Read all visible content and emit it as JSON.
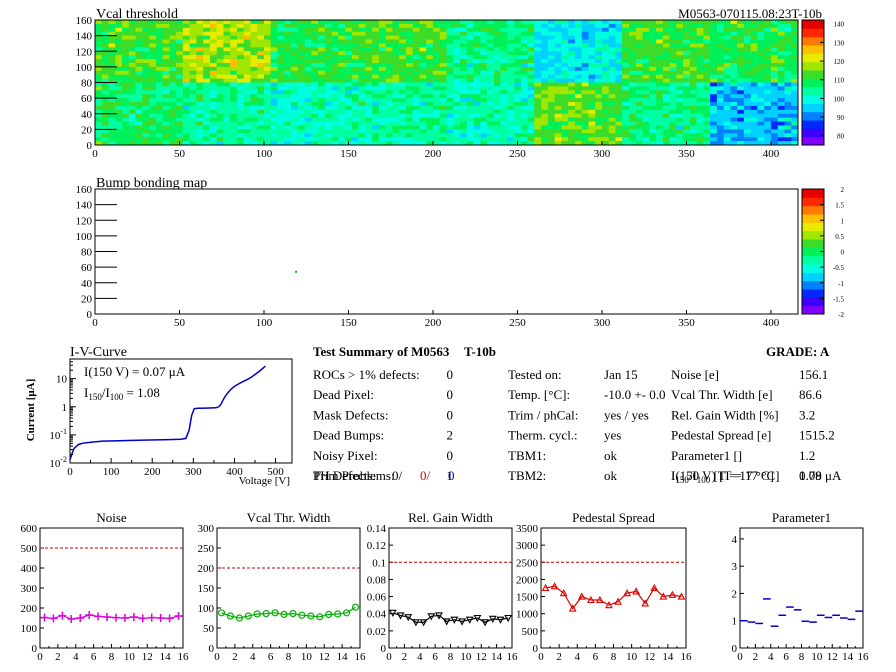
{
  "header": {
    "module_id": "M0563-070115.08:23T-10b"
  },
  "chart_data": [
    {
      "id": "vcal-threshold-map",
      "type": "heatmap",
      "title": "Vcal threshold",
      "x_ticks": [
        0,
        50,
        100,
        150,
        200,
        250,
        300,
        350,
        400
      ],
      "y_ticks": [
        0,
        20,
        40,
        60,
        80,
        100,
        120,
        140,
        160
      ],
      "xlim": [
        0,
        416
      ],
      "ylim": [
        0,
        160
      ],
      "colorbar_ticks": [
        80,
        90,
        100,
        110,
        120,
        130,
        140
      ],
      "colorbar_range": [
        75,
        142
      ],
      "roc_layout": {
        "columns": 8,
        "rows": 2,
        "cols_per_roc": 52,
        "rows_per_roc": 80
      },
      "roc_mean_values": {
        "top": [
          112,
          118,
          110,
          112,
          106,
          98,
          112,
          110
        ],
        "bottom": [
          108,
          104,
          102,
          104,
          103,
          114,
          106,
          94
        ]
      }
    },
    {
      "id": "bump-bonding-map",
      "type": "heatmap",
      "title": "Bump bonding map",
      "x_ticks": [
        0,
        50,
        100,
        150,
        200,
        250,
        300,
        350,
        400
      ],
      "y_ticks": [
        0,
        20,
        40,
        60,
        80,
        100,
        120,
        140,
        160
      ],
      "xlim": [
        0,
        416
      ],
      "ylim": [
        0,
        160
      ],
      "colorbar_ticks": [
        -2,
        -1.5,
        -1,
        -0.5,
        0,
        0.5,
        1,
        1.5,
        2
      ],
      "colorbar_tick_labels": [
        "-2",
        "-1.5",
        "-1",
        "-0.5",
        "0",
        "0.5",
        "1",
        "1.5",
        "2"
      ],
      "colorbar_range": [
        -2,
        2
      ],
      "points": [
        {
          "x": 119,
          "y": 54
        }
      ]
    },
    {
      "id": "iv-curve",
      "type": "line",
      "title": "I-V-Curve",
      "xlabel": "Voltage [V]",
      "ylabel": "Current [μA]",
      "x_ticks": [
        0,
        100,
        200,
        300,
        400,
        500
      ],
      "xlim": [
        0,
        540
      ],
      "y_scale": "log",
      "ylim": [
        0.01,
        50
      ],
      "y_ticks": [
        0.01,
        0.1,
        1,
        10
      ],
      "annotation_current": "I(150 V) = 0.07 μA",
      "annotation_ratio_value": "1.08",
      "x": [
        0,
        5,
        10,
        20,
        30,
        50,
        80,
        120,
        180,
        240,
        270,
        282,
        290,
        296,
        302,
        310,
        330,
        355,
        362,
        368,
        372,
        378,
        385,
        392,
        400,
        410,
        420,
        430,
        440,
        450,
        460,
        470,
        475
      ],
      "y": [
        0.013,
        0.022,
        0.033,
        0.045,
        0.05,
        0.055,
        0.06,
        0.062,
        0.065,
        0.068,
        0.07,
        0.075,
        0.15,
        0.5,
        0.85,
        0.88,
        0.9,
        0.92,
        1.0,
        1.3,
        1.7,
        2.4,
        3.3,
        4.3,
        5.3,
        6.5,
        7.8,
        9.2,
        11,
        14,
        18,
        24,
        28
      ]
    },
    {
      "id": "noise-per-roc",
      "type": "line",
      "title": "Noise",
      "x_ticks": [
        0,
        2,
        4,
        6,
        8,
        10,
        12,
        14,
        16
      ],
      "xlim": [
        0,
        16
      ],
      "y_ticks": [
        0,
        100,
        200,
        300,
        400,
        500,
        600
      ],
      "ylim": [
        0,
        600
      ],
      "cut_line": 500,
      "color": "#e000e0",
      "marker": "cross",
      "x": [
        0.5,
        1.5,
        2.5,
        3.5,
        4.5,
        5.5,
        6.5,
        7.5,
        8.5,
        9.5,
        10.5,
        11.5,
        12.5,
        13.5,
        14.5,
        15.5
      ],
      "values": [
        152,
        148,
        162,
        145,
        150,
        165,
        158,
        155,
        152,
        150,
        155,
        148,
        152,
        150,
        148,
        160
      ]
    },
    {
      "id": "vcal-width-per-roc",
      "type": "line",
      "title": "Vcal Thr. Width",
      "x_ticks": [
        0,
        2,
        4,
        6,
        8,
        10,
        12,
        14,
        16
      ],
      "xlim": [
        0,
        16
      ],
      "y_ticks": [
        0,
        50,
        100,
        150,
        200,
        250,
        300
      ],
      "ylim": [
        0,
        300
      ],
      "cut_line": 200,
      "color": "#00b000",
      "marker": "open-circle",
      "x": [
        0.5,
        1.5,
        2.5,
        3.5,
        4.5,
        5.5,
        6.5,
        7.5,
        8.5,
        9.5,
        10.5,
        11.5,
        12.5,
        13.5,
        14.5,
        15.5
      ],
      "values": [
        88,
        80,
        75,
        80,
        85,
        86,
        88,
        84,
        86,
        82,
        80,
        78,
        84,
        85,
        88,
        102
      ]
    },
    {
      "id": "gain-width-per-roc",
      "type": "line",
      "title": "Rel. Gain Width",
      "x_ticks": [
        0,
        2,
        4,
        6,
        8,
        10,
        12,
        14,
        16
      ],
      "xlim": [
        0,
        16
      ],
      "y_ticks": [
        0,
        0.02,
        0.04,
        0.06,
        0.08,
        0.1,
        0.12,
        0.14
      ],
      "y_tick_labels": [
        "0",
        "0.02",
        "0.04",
        "0.06",
        "0.08",
        "0.1",
        "0.12",
        "0.14"
      ],
      "ylim": [
        0,
        0.14
      ],
      "cut_line": 0.1,
      "color": "#000000",
      "marker": "open-triangle-down",
      "x": [
        0.5,
        1.5,
        2.5,
        3.5,
        4.5,
        5.5,
        6.5,
        7.5,
        8.5,
        9.5,
        10.5,
        11.5,
        12.5,
        13.5,
        14.5,
        15.5
      ],
      "values": [
        0.041,
        0.038,
        0.036,
        0.03,
        0.03,
        0.037,
        0.038,
        0.031,
        0.033,
        0.031,
        0.033,
        0.035,
        0.03,
        0.034,
        0.033,
        0.035
      ]
    },
    {
      "id": "pedestal-spread-per-roc",
      "type": "line",
      "title": "Pedestal Spread",
      "x_ticks": [
        0,
        2,
        4,
        6,
        8,
        10,
        12,
        14,
        16
      ],
      "xlim": [
        0,
        16
      ],
      "y_ticks": [
        0,
        500,
        1000,
        1500,
        2000,
        2500,
        3000,
        3500
      ],
      "ylim": [
        0,
        3500
      ],
      "cut_line": 2500,
      "color": "#e00000",
      "marker": "open-triangle-up",
      "x": [
        0.5,
        1.5,
        2.5,
        3.5,
        4.5,
        5.5,
        6.5,
        7.5,
        8.5,
        9.5,
        10.5,
        11.5,
        12.5,
        13.5,
        14.5,
        15.5
      ],
      "values": [
        1750,
        1800,
        1600,
        1150,
        1500,
        1400,
        1400,
        1250,
        1350,
        1600,
        1650,
        1300,
        1750,
        1500,
        1550,
        1500
      ]
    },
    {
      "id": "parameter1-per-roc",
      "type": "scatter",
      "title": "Parameter1",
      "x_ticks": [
        0,
        2,
        4,
        6,
        8,
        10,
        12,
        14,
        16
      ],
      "xlim": [
        0,
        16
      ],
      "y_ticks": [
        0,
        1,
        2,
        3,
        4
      ],
      "ylim": [
        0,
        4.4
      ],
      "color": "#0000cc",
      "marker": "horizontal-bar",
      "x": [
        0.5,
        1.5,
        2.5,
        3.5,
        4.5,
        5.5,
        6.5,
        7.5,
        8.5,
        9.5,
        10.5,
        11.5,
        12.5,
        13.5,
        14.5,
        15.5
      ],
      "values": [
        1.0,
        0.95,
        0.9,
        1.8,
        0.8,
        1.2,
        1.5,
        1.4,
        0.98,
        0.95,
        1.2,
        1.12,
        1.2,
        1.1,
        1.05,
        1.35
      ]
    }
  ],
  "summary": {
    "title_prefix": "Test Summary of",
    "module": "M0563",
    "test": "T-10b",
    "grade_label": "GRADE:",
    "grade": "A",
    "defects": [
      {
        "label": "ROCs > 1% defects:",
        "value": "0"
      },
      {
        "label": "Dead Pixel:",
        "value": "0"
      },
      {
        "label": "Mask Defects:",
        "value": "0"
      },
      {
        "label": "Dead Bumps:",
        "value": "2"
      },
      {
        "label": "Noisy Pixel:",
        "value": "0"
      },
      {
        "label": "Trim Problems:",
        "value": "1"
      }
    ],
    "ph_defects_label": "PH Defects:",
    "ph_defects_values": [
      "0/",
      "0/",
      "0"
    ],
    "ph_colors": [
      "#000000",
      "#d00000",
      "#0000cc"
    ],
    "conditions": [
      {
        "label": "Tested on:",
        "value": "Jan 15"
      },
      {
        "label": "Temp. [°C]:",
        "value": "-10.0 +- 0.0"
      },
      {
        "label": "Trim / phCal:",
        "value": "yes / yes"
      },
      {
        "label": "Therm. cycl.:",
        "value": "yes"
      },
      {
        "label": "TBM1:",
        "value": "ok"
      },
      {
        "label": "TBM2:",
        "value": "ok"
      }
    ],
    "results": [
      {
        "label": "Noise [e]",
        "value": "156.1"
      },
      {
        "label": "Vcal Thr. Width [e]",
        "value": "86.6"
      },
      {
        "label": "Rel. Gain Width [%]",
        "value": "3.2"
      },
      {
        "label": "Pedestal Spread [e]",
        "value": "1515.2"
      },
      {
        "label": "Parameter1 []",
        "value": "1.2"
      },
      {
        "label": "I(150 V) [T = 17 °C]",
        "value": "0.79 μA"
      }
    ],
    "ratio_condition": "[T = 17 °C]",
    "ratio_value": "1.08"
  }
}
